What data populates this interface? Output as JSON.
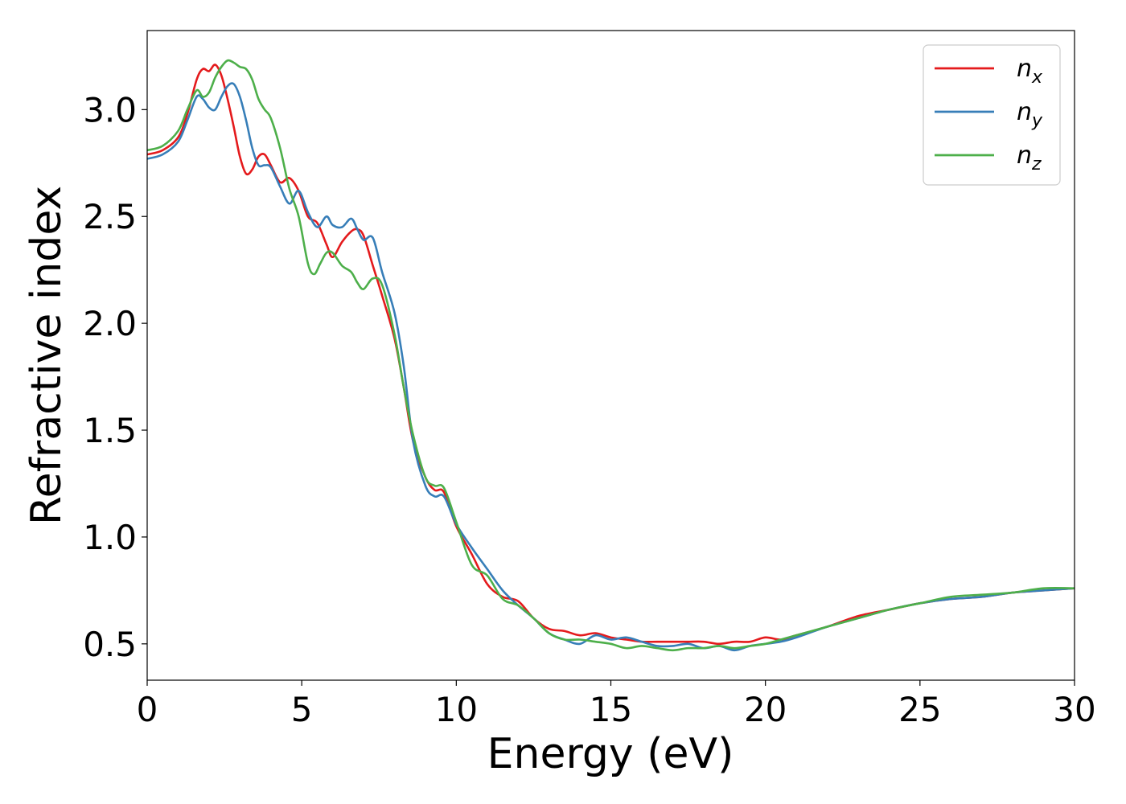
{
  "chart_data": {
    "type": "line",
    "title": "",
    "xlabel": "Energy (eV)",
    "ylabel": "Refractive index",
    "xlim": [
      0,
      30
    ],
    "ylim": [
      0.33,
      3.37
    ],
    "xticks": [
      0,
      5,
      10,
      15,
      20,
      25,
      30
    ],
    "xtick_labels": [
      "0",
      "5",
      "10",
      "15",
      "20",
      "25",
      "30"
    ],
    "yticks": [
      0.5,
      1.0,
      1.5,
      2.0,
      2.5,
      3.0
    ],
    "ytick_labels": [
      "0.5",
      "1.0",
      "1.5",
      "2.0",
      "2.5",
      "3.0"
    ],
    "grid": false,
    "legend_position": "top-right",
    "series": [
      {
        "name": "n_x",
        "label_base": "n",
        "label_sub": "x",
        "color": "#e41a1c",
        "x": [
          0,
          0.5,
          1.0,
          1.3,
          1.6,
          1.8,
          2.0,
          2.2,
          2.4,
          2.6,
          2.8,
          3.0,
          3.2,
          3.4,
          3.6,
          3.8,
          4.0,
          4.3,
          4.6,
          4.9,
          5.2,
          5.5,
          5.8,
          6.0,
          6.3,
          6.6,
          6.8,
          7.0,
          7.3,
          7.6,
          8.0,
          8.3,
          8.6,
          9.0,
          9.3,
          9.6,
          10.0,
          10.5,
          11.0,
          11.5,
          12.0,
          12.5,
          13.0,
          13.5,
          14.0,
          14.5,
          15.0,
          15.5,
          16.0,
          16.5,
          17.0,
          17.5,
          18.0,
          18.5,
          19.0,
          19.5,
          20.0,
          20.5,
          21.0,
          22.0,
          23.0,
          24.0,
          25.0,
          26.0,
          27.0,
          28.0,
          29.0,
          30.0
        ],
        "values": [
          2.79,
          2.81,
          2.87,
          2.98,
          3.14,
          3.19,
          3.18,
          3.21,
          3.16,
          3.05,
          2.92,
          2.78,
          2.7,
          2.72,
          2.78,
          2.79,
          2.74,
          2.66,
          2.68,
          2.62,
          2.5,
          2.47,
          2.37,
          2.31,
          2.38,
          2.43,
          2.44,
          2.41,
          2.27,
          2.13,
          1.93,
          1.7,
          1.45,
          1.28,
          1.22,
          1.21,
          1.05,
          0.92,
          0.78,
          0.72,
          0.7,
          0.62,
          0.57,
          0.56,
          0.54,
          0.55,
          0.53,
          0.52,
          0.51,
          0.51,
          0.51,
          0.51,
          0.51,
          0.5,
          0.51,
          0.51,
          0.53,
          0.52,
          0.54,
          0.58,
          0.63,
          0.66,
          0.69,
          0.71,
          0.72,
          0.74,
          0.75,
          0.76
        ]
      },
      {
        "name": "n_y",
        "label_base": "n",
        "label_sub": "y",
        "color": "#377eb8",
        "x": [
          0,
          0.5,
          1.0,
          1.3,
          1.6,
          1.8,
          2.0,
          2.2,
          2.4,
          2.6,
          2.8,
          3.0,
          3.2,
          3.4,
          3.6,
          3.8,
          4.0,
          4.3,
          4.6,
          4.9,
          5.2,
          5.5,
          5.8,
          6.0,
          6.3,
          6.6,
          6.8,
          7.0,
          7.3,
          7.6,
          8.0,
          8.3,
          8.6,
          9.0,
          9.3,
          9.6,
          10.0,
          10.5,
          11.0,
          11.5,
          12.0,
          12.5,
          13.0,
          13.5,
          14.0,
          14.5,
          15.0,
          15.5,
          16.0,
          16.5,
          17.0,
          17.5,
          18.0,
          18.5,
          19.0,
          19.5,
          20.0,
          20.5,
          21.0,
          22.0,
          23.0,
          24.0,
          25.0,
          26.0,
          27.0,
          28.0,
          29.0,
          30.0
        ],
        "values": [
          2.77,
          2.79,
          2.85,
          2.95,
          3.06,
          3.05,
          3.01,
          3.0,
          3.06,
          3.11,
          3.12,
          3.06,
          2.95,
          2.82,
          2.74,
          2.74,
          2.73,
          2.64,
          2.56,
          2.62,
          2.52,
          2.45,
          2.5,
          2.46,
          2.45,
          2.49,
          2.44,
          2.39,
          2.4,
          2.24,
          2.05,
          1.8,
          1.45,
          1.24,
          1.19,
          1.19,
          1.06,
          0.95,
          0.85,
          0.75,
          0.68,
          0.62,
          0.55,
          0.52,
          0.5,
          0.54,
          0.52,
          0.53,
          0.51,
          0.49,
          0.49,
          0.5,
          0.48,
          0.49,
          0.47,
          0.49,
          0.5,
          0.51,
          0.53,
          0.58,
          0.62,
          0.66,
          0.69,
          0.71,
          0.72,
          0.74,
          0.75,
          0.76
        ]
      },
      {
        "name": "n_z",
        "label_base": "n",
        "label_sub": "z",
        "color": "#4daf4a",
        "x": [
          0,
          0.5,
          1.0,
          1.3,
          1.6,
          1.8,
          2.0,
          2.2,
          2.4,
          2.6,
          2.8,
          3.0,
          3.2,
          3.4,
          3.6,
          3.8,
          4.0,
          4.3,
          4.6,
          4.9,
          5.2,
          5.4,
          5.6,
          5.8,
          6.0,
          6.3,
          6.6,
          6.8,
          7.0,
          7.3,
          7.6,
          8.0,
          8.3,
          8.6,
          9.0,
          9.3,
          9.6,
          10.0,
          10.5,
          11.0,
          11.5,
          12.0,
          12.5,
          13.0,
          13.5,
          14.0,
          14.5,
          15.0,
          15.5,
          16.0,
          16.5,
          17.0,
          17.5,
          18.0,
          18.5,
          19.0,
          19.5,
          20.0,
          20.5,
          21.0,
          22.0,
          23.0,
          24.0,
          25.0,
          26.0,
          27.0,
          28.0,
          29.0,
          30.0
        ],
        "values": [
          2.81,
          2.83,
          2.9,
          3.0,
          3.09,
          3.06,
          3.08,
          3.15,
          3.2,
          3.23,
          3.22,
          3.2,
          3.19,
          3.14,
          3.05,
          3.0,
          2.96,
          2.82,
          2.63,
          2.5,
          2.28,
          2.23,
          2.28,
          2.33,
          2.33,
          2.27,
          2.24,
          2.19,
          2.16,
          2.21,
          2.18,
          1.95,
          1.7,
          1.48,
          1.28,
          1.24,
          1.23,
          1.07,
          0.87,
          0.82,
          0.71,
          0.68,
          0.62,
          0.55,
          0.52,
          0.52,
          0.51,
          0.5,
          0.48,
          0.49,
          0.48,
          0.47,
          0.48,
          0.48,
          0.49,
          0.48,
          0.49,
          0.5,
          0.52,
          0.54,
          0.58,
          0.62,
          0.66,
          0.69,
          0.72,
          0.73,
          0.74,
          0.76,
          0.76
        ]
      }
    ]
  }
}
